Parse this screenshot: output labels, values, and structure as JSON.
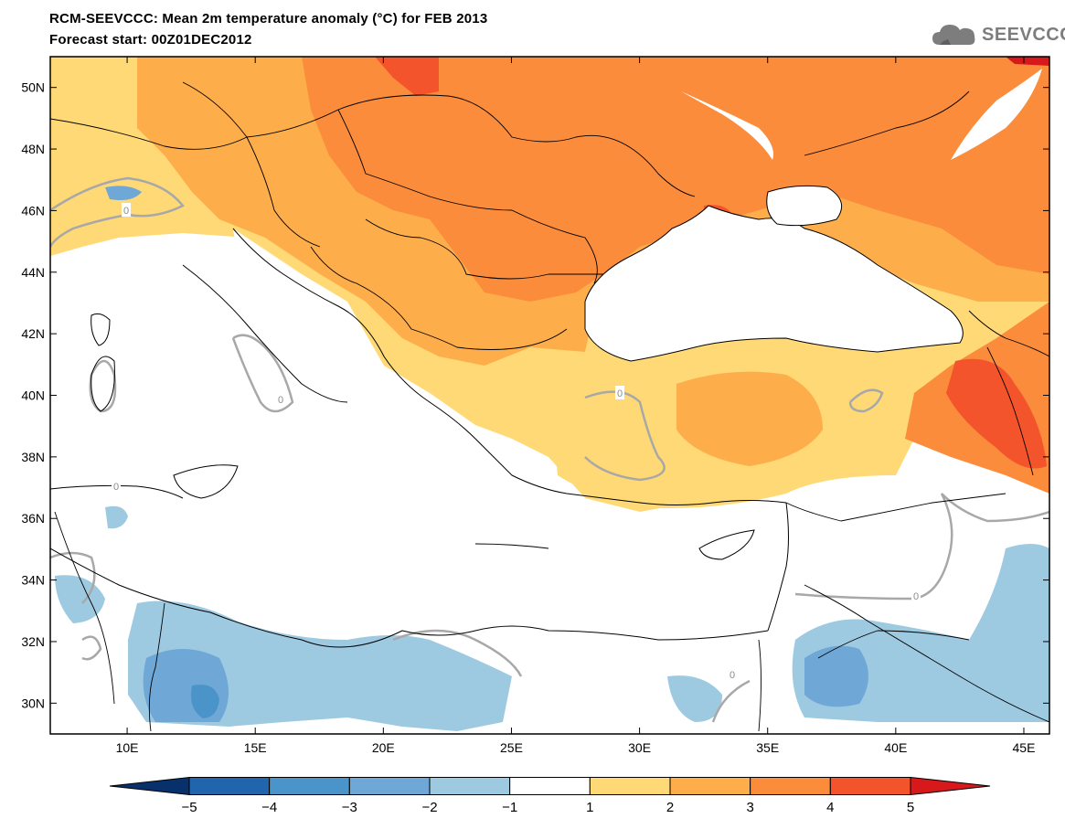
{
  "header": {
    "title": "RCM-SEEVCCC: Mean 2m temperature anomaly (°C) for FEB 2013",
    "subtitle": "Forecast start: 00Z01DEC2012",
    "logo_text": "SEEVCCC",
    "logo_icon": "cloud-icon"
  },
  "map": {
    "lon_range": [
      7,
      46
    ],
    "lat_range": [
      29,
      51
    ],
    "lat_ticks": [
      {
        "value": 30,
        "label": "30N"
      },
      {
        "value": 32,
        "label": "32N"
      },
      {
        "value": 34,
        "label": "34N"
      },
      {
        "value": 36,
        "label": "36N"
      },
      {
        "value": 38,
        "label": "38N"
      },
      {
        "value": 40,
        "label": "40N"
      },
      {
        "value": 42,
        "label": "42N"
      },
      {
        "value": 44,
        "label": "44N"
      },
      {
        "value": 46,
        "label": "46N"
      },
      {
        "value": 48,
        "label": "48N"
      },
      {
        "value": 50,
        "label": "50N"
      }
    ],
    "lon_ticks": [
      {
        "value": 10,
        "label": "10E"
      },
      {
        "value": 15,
        "label": "15E"
      },
      {
        "value": 20,
        "label": "20E"
      },
      {
        "value": 25,
        "label": "25E"
      },
      {
        "value": 30,
        "label": "30E"
      },
      {
        "value": 35,
        "label": "35E"
      },
      {
        "value": 40,
        "label": "40E"
      },
      {
        "value": 45,
        "label": "45E"
      }
    ],
    "contour_label": "0"
  },
  "colorbar": {
    "levels": [
      "−5",
      "−4",
      "−3",
      "−2",
      "−1",
      "1",
      "2",
      "3",
      "4",
      "5"
    ],
    "colors": [
      "#08306b",
      "#2166ac",
      "#4b94c9",
      "#6fa8d6",
      "#9ecae1",
      "#ffffff",
      "#fed976",
      "#fdae4b",
      "#fb8c3c",
      "#f4542b",
      "#d7191c"
    ]
  },
  "palette": {
    "warm_1": "#fed976",
    "warm_2": "#fdae4b",
    "warm_3": "#fb8c3c",
    "warm_4": "#f4542b",
    "cool_1": "#9ecae1",
    "cool_2": "#6fa8d6",
    "cool_3": "#4b94c9",
    "contour": "#a8a8a8"
  }
}
